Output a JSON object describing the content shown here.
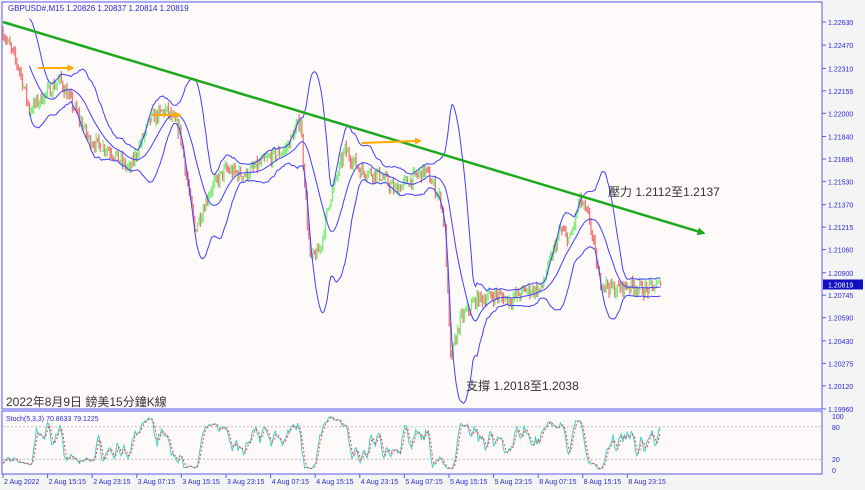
{
  "window": {
    "symbol_info": "GBPUSD#,M15  1.20826 1.20837 1.20814 1.20819",
    "stoch_info": "Stoch(5,3,3) 70.8633 79.1225"
  },
  "colors": {
    "background": "#fffafa",
    "axis": "#5a5af0",
    "bull": "#7cf07c",
    "bear": "#f07a7a",
    "bands": "#4040ff",
    "trendline": "#1ea81e",
    "arrows": "#ffaa00",
    "stoch_k": "#40d0c8",
    "stoch_d": "#ff4040"
  },
  "chart_data": {
    "type": "candlestick",
    "timeframe": "M15",
    "ylim": [
      1.1996,
      1.2263
    ],
    "yticks": [
      "1.22630",
      "1.22470",
      "1.22310",
      "1.22155",
      "1.22000",
      "1.21840",
      "1.21685",
      "1.21530",
      "1.21370",
      "1.21215",
      "1.21060",
      "1.20900",
      "1.20745",
      "1.20590",
      "1.20430",
      "1.20275",
      "1.20120",
      "1.19960"
    ],
    "current_price": "1.20819",
    "xticks": [
      "2 Aug 2022",
      "2 Aug 15:15",
      "2 Aug 23:15",
      "3 Aug 07:15",
      "3 Aug 15:15",
      "3 Aug 23:15",
      "4 Aug 07:15",
      "4 Aug 15:15",
      "4 Aug 23:15",
      "5 Aug 07:15",
      "5 Aug 15:15",
      "5 Aug 23:15",
      "8 Aug 07:15",
      "8 Aug 15:15",
      "8 Aug 23:15"
    ],
    "close_path": [
      [
        "2022-08-02T07:30",
        1.2254
      ],
      [
        "2022-08-02T10:15",
        1.22299
      ],
      [
        "2022-08-02T12:00",
        1.22023
      ],
      [
        "2022-08-02T14:45",
        1.22126
      ],
      [
        "2022-08-02T17:30",
        1.2223
      ],
      [
        "2022-08-02T20:15",
        1.22023
      ],
      [
        "2022-08-02T22:45",
        1.21816
      ],
      [
        "2022-08-03T02:30",
        1.21747
      ],
      [
        "2022-08-03T06:00",
        1.21609
      ],
      [
        "2022-08-03T09:45",
        1.21954
      ],
      [
        "2022-08-03T12:30",
        1.22023
      ],
      [
        "2022-08-03T15:00",
        1.21885
      ],
      [
        "2022-08-03T17:45",
        1.21195
      ],
      [
        "2022-08-03T20:30",
        1.21471
      ],
      [
        "2022-08-03T23:15",
        1.21609
      ],
      [
        "2022-08-04T02:45",
        1.21574
      ],
      [
        "2022-08-04T06:30",
        1.21678
      ],
      [
        "2022-08-04T10:00",
        1.21747
      ],
      [
        "2022-08-04T12:45",
        1.21954
      ],
      [
        "2022-08-04T14:30",
        1.20988
      ],
      [
        "2022-08-04T16:15",
        1.21057
      ],
      [
        "2022-08-04T18:00",
        1.21402
      ],
      [
        "2022-08-04T20:45",
        1.21747
      ],
      [
        "2022-08-04T23:30",
        1.21609
      ],
      [
        "2022-08-05T03:00",
        1.21574
      ],
      [
        "2022-08-05T05:45",
        1.21471
      ],
      [
        "2022-08-05T08:30",
        1.2154
      ],
      [
        "2022-08-05T11:15",
        1.21609
      ],
      [
        "2022-08-05T14:00",
        1.21402
      ],
      [
        "2022-08-05T14:45",
        1.21195
      ],
      [
        "2022-08-05T15:45",
        1.20298
      ],
      [
        "2022-08-05T17:30",
        1.20574
      ],
      [
        "2022-08-05T20:15",
        1.20712
      ],
      [
        "2022-08-05T23:45",
        1.20746
      ],
      [
        "2022-08-08T02:30",
        1.20712
      ],
      [
        "2022-08-08T05:15",
        1.20781
      ],
      [
        "2022-08-08T08:00",
        1.20781
      ],
      [
        "2022-08-08T09:45",
        1.20988
      ],
      [
        "2022-08-08T11:30",
        1.21195
      ],
      [
        "2022-08-08T13:15",
        1.21126
      ],
      [
        "2022-08-08T15:00",
        1.21402
      ],
      [
        "2022-08-08T16:45",
        1.21264
      ],
      [
        "2022-08-08T18:30",
        1.2085
      ],
      [
        "2022-08-08T21:15",
        1.20781
      ],
      [
        "2022-08-09T00:00",
        1.20815
      ],
      [
        "2022-08-09T02:45",
        1.20781
      ],
      [
        "2022-08-09T05:30",
        1.20819
      ]
    ],
    "indicators": [
      "Bollinger Bands",
      "Stoch(5,3,3)"
    ],
    "stoch": {
      "ylim": [
        0,
        100
      ],
      "levels": [
        20,
        80
      ],
      "yticks": [
        "100",
        "80",
        "20",
        "0"
      ],
      "k": 70.8633,
      "d": 79.1225
    },
    "trendline": [
      [
        "2022-08-02T07:15",
        1.2263
      ],
      [
        "2022-08-09T13:15",
        1.21174
      ]
    ],
    "arrows": [
      [
        [
          "2022-08-02T13:30",
          1.22313
        ],
        [
          "2022-08-02T19:45",
          1.22313
        ]
      ],
      [
        [
          "2022-08-03T10:00",
          1.21988
        ],
        [
          "2022-08-03T15:00",
          1.21988
        ]
      ],
      [
        [
          "2022-08-04T23:45",
          1.21795
        ],
        [
          "2022-08-05T10:15",
          1.2181
        ]
      ]
    ],
    "annotations": {
      "resistance": "壓力 1.2112至1.2137",
      "support": "支撐 1.2018至1.2038",
      "caption": "2022年8月9日 鎊美15分鐘K線"
    }
  }
}
